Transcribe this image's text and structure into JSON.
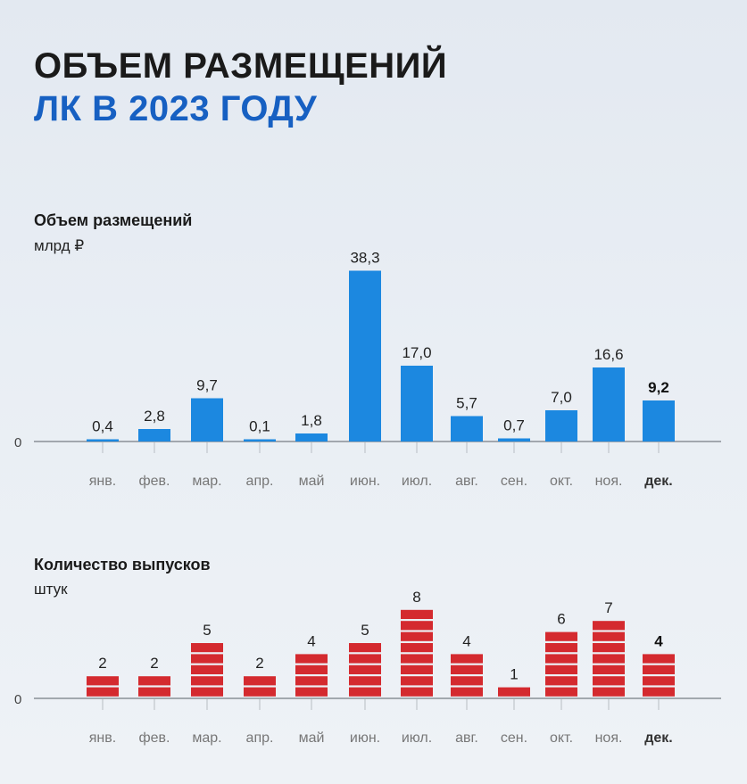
{
  "header": {
    "title_line1": "ОБЪЕМ РАЗМЕЩЕНИЙ",
    "title_line2": "ЛК В 2023 ГОДУ",
    "title_line2_color": "#1760c2"
  },
  "colors": {
    "volume_bar": "#1c88e0",
    "count_bar": "#d42a2f",
    "axis": "#8a8f96"
  },
  "chart_data": [
    {
      "type": "bar",
      "title": "Объем размещений",
      "ylabel": "млрд ₽",
      "zero_label": "0",
      "categories": [
        "янв.",
        "фев.",
        "мар.",
        "апр.",
        "май",
        "июн.",
        "июл.",
        "авг.",
        "сен.",
        "окт.",
        "ноя.",
        "дек."
      ],
      "values": [
        0.4,
        2.8,
        9.7,
        0.1,
        1.8,
        38.3,
        17.0,
        5.7,
        0.7,
        7.0,
        16.6,
        9.2
      ],
      "value_labels": [
        "0,4",
        "2,8",
        "9,7",
        "0,1",
        "1,8",
        "38,3",
        "17,0",
        "5,7",
        "0,7",
        "7,0",
        "16,6",
        "9,2"
      ],
      "highlight": "дек.",
      "ylim": [
        0,
        40
      ],
      "grid": false
    },
    {
      "type": "bar",
      "title": "Количество выпусков",
      "ylabel": "штук",
      "zero_label": "0",
      "categories": [
        "янв.",
        "фев.",
        "мар.",
        "апр.",
        "май",
        "июн.",
        "июл.",
        "авг.",
        "сен.",
        "окт.",
        "ноя.",
        "дек."
      ],
      "values": [
        2,
        2,
        5,
        2,
        4,
        5,
        8,
        4,
        1,
        6,
        7,
        4
      ],
      "value_labels": [
        "2",
        "2",
        "5",
        "2",
        "4",
        "5",
        "8",
        "4",
        "1",
        "6",
        "7",
        "4"
      ],
      "highlight": "дек.",
      "ylim": [
        0,
        8
      ],
      "grid": false
    }
  ]
}
